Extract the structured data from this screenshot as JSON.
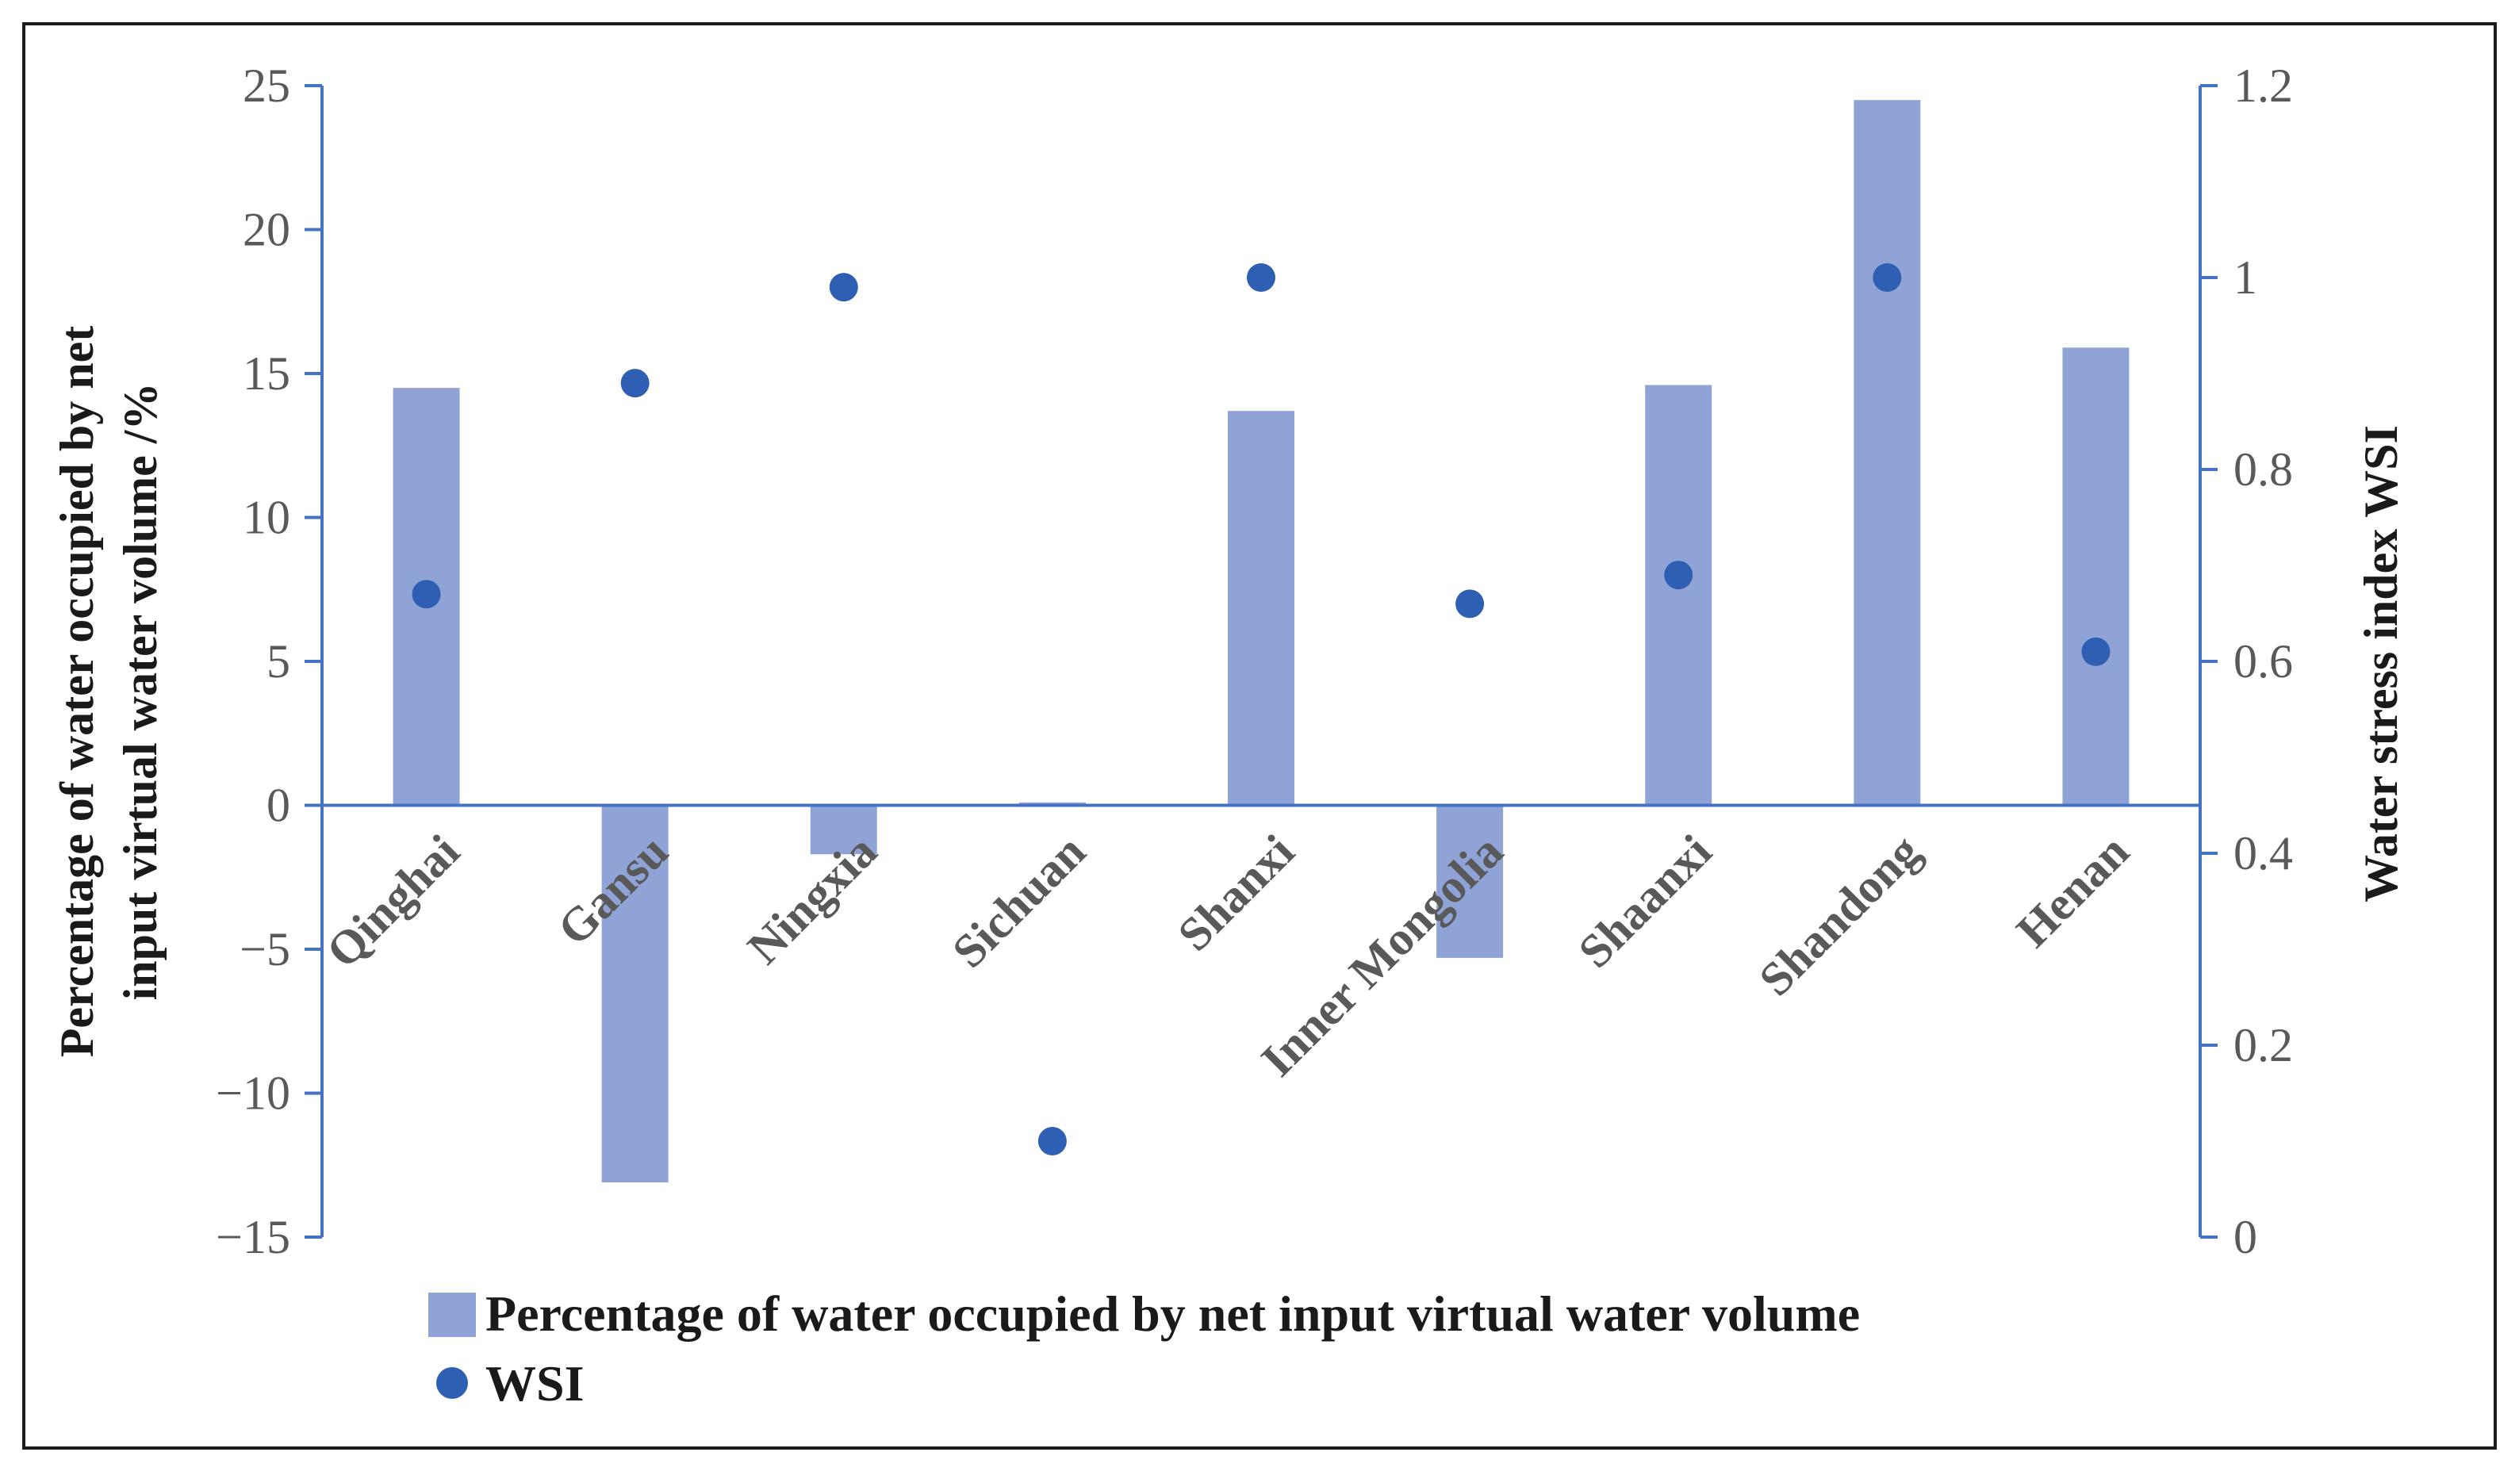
{
  "chart_data": {
    "type": "bar+scatter",
    "categories": [
      "Qinghai",
      "Gansu",
      "Ningxia",
      "Sichuan",
      "Shanxi",
      "Inner Mongolia",
      "Shaanxi",
      "Shandong",
      "Henan"
    ],
    "series": [
      {
        "name": "Percentage of water occupied by net input virtual water volume",
        "type": "bar",
        "axis": "left",
        "values": [
          14.5,
          -13.1,
          -1.7,
          0.1,
          13.7,
          -5.3,
          14.6,
          24.5,
          15.9
        ]
      },
      {
        "name": "WSI",
        "type": "scatter",
        "axis": "right",
        "values": [
          0.67,
          0.89,
          0.99,
          0.1,
          1.0,
          0.66,
          0.69,
          1.0,
          0.61
        ]
      }
    ],
    "ylabel": "Percentage of water occupied by net input virtual water volume /%",
    "ylabel_lines": [
      "Percentage of water occupied by net",
      "input virtual water volume /%"
    ],
    "y2label": "Water stress index WSI",
    "ylim": [
      -15,
      25
    ],
    "y2lim": [
      0,
      1.2
    ],
    "yticks": [
      25,
      20,
      15,
      10,
      5,
      0,
      -5,
      -10,
      -15
    ],
    "yticks_labels": [
      "25",
      "20",
      "15",
      "10",
      "5",
      "0",
      "−5",
      "−10",
      "−15"
    ],
    "y2ticks": [
      1.2,
      1,
      0.8,
      0.6,
      0.4,
      0.2,
      0
    ],
    "y2ticks_labels": [
      "1.2",
      "1",
      "0.8",
      "0.6",
      "0.4",
      "0.2",
      "0"
    ],
    "legend_position": "bottom",
    "colors": {
      "bar": "#8fa3d6",
      "point": "#2f5fb3",
      "axis": "#4472c4"
    }
  }
}
